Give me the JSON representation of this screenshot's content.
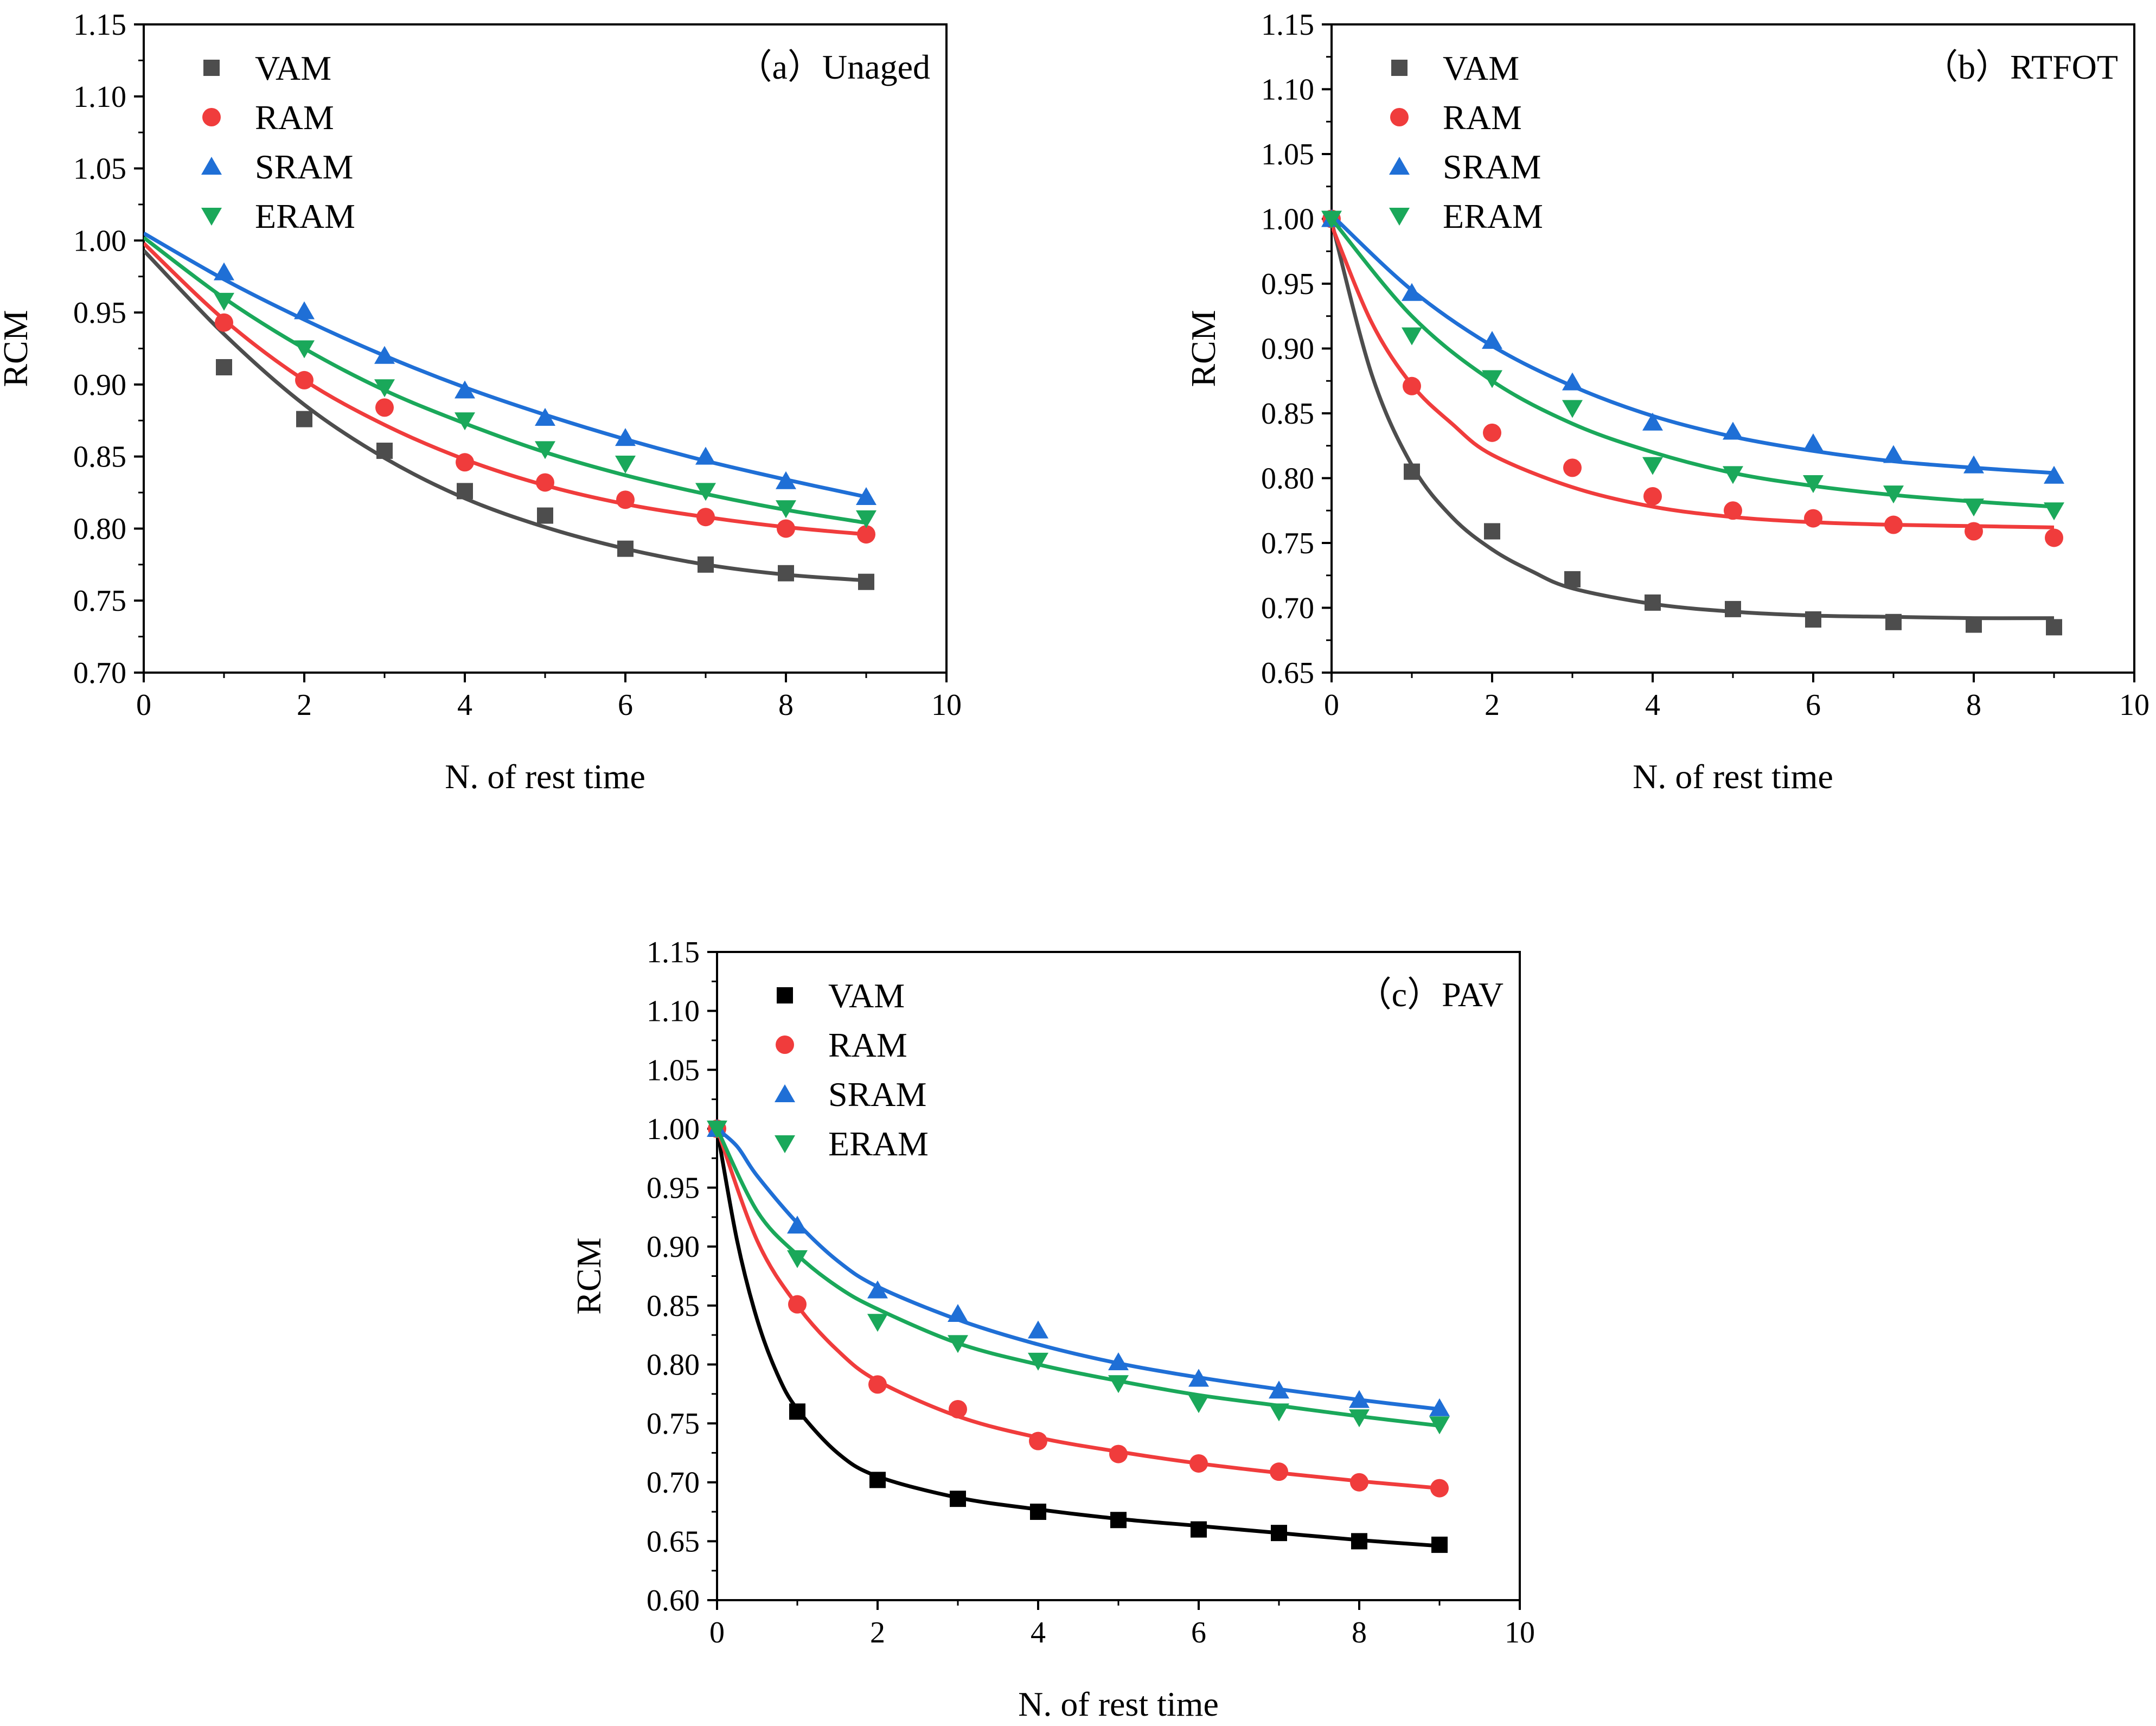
{
  "chart_data": [
    {
      "type": "scatter",
      "panel_label": "（a）Unaged",
      "xlabel": "N. of rest time",
      "ylabel": "RCM",
      "xlim": [
        0,
        10
      ],
      "ylim": [
        0.7,
        1.15
      ],
      "xticks": [
        "0",
        "2",
        "4",
        "6",
        "8",
        "10"
      ],
      "yticks": [
        "0.70",
        "0.75",
        "0.80",
        "0.85",
        "0.90",
        "0.95",
        "1.00",
        "1.05",
        "1.10",
        "1.15"
      ],
      "legend_position": "top-left",
      "series": [
        {
          "name": "VAM",
          "marker": "square",
          "color": "#4d4d4d",
          "x": [
            1,
            2,
            3,
            4,
            5,
            6,
            7,
            8,
            9
          ],
          "y": [
            0.912,
            0.876,
            0.854,
            0.826,
            0.809,
            0.786,
            0.775,
            0.769,
            0.763
          ],
          "fit": {
            "x": [
              0,
              1,
              2,
              3,
              4,
              5,
              6,
              7,
              8,
              9
            ],
            "y": [
              0.993,
              0.935,
              0.886,
              0.849,
              0.821,
              0.801,
              0.786,
              0.775,
              0.768,
              0.764
            ]
          }
        },
        {
          "name": "RAM",
          "marker": "circle",
          "color": "#f03c3c",
          "x": [
            1,
            2,
            3,
            4,
            5,
            6,
            7,
            8,
            9
          ],
          "y": [
            0.943,
            0.903,
            0.884,
            0.846,
            0.832,
            0.82,
            0.808,
            0.8,
            0.796
          ],
          "fit": {
            "x": [
              0,
              1,
              2,
              3,
              4,
              5,
              6,
              7,
              8,
              9
            ],
            "y": [
              0.998,
              0.945,
              0.903,
              0.872,
              0.848,
              0.83,
              0.817,
              0.808,
              0.801,
              0.796
            ]
          }
        },
        {
          "name": "SRAM",
          "marker": "triangle-up",
          "color": "#1f6fd6",
          "x": [
            1,
            2,
            3,
            4,
            5,
            6,
            7,
            8,
            9
          ],
          "y": [
            0.978,
            0.951,
            0.92,
            0.896,
            0.877,
            0.863,
            0.85,
            0.833,
            0.822
          ],
          "fit": {
            "x": [
              0,
              1,
              2,
              3,
              4,
              5,
              6,
              7,
              8,
              9
            ],
            "y": [
              1.005,
              0.973,
              0.945,
              0.92,
              0.898,
              0.879,
              0.862,
              0.847,
              0.834,
              0.822
            ]
          }
        },
        {
          "name": "ERAM",
          "marker": "triangle-down",
          "color": "#1aa85a",
          "x": [
            1,
            2,
            3,
            4,
            5,
            6,
            7,
            8,
            9
          ],
          "y": [
            0.958,
            0.925,
            0.898,
            0.875,
            0.855,
            0.845,
            0.826,
            0.814,
            0.807
          ],
          "fit": {
            "x": [
              0,
              1,
              2,
              3,
              4,
              5,
              6,
              7,
              8,
              9
            ],
            "y": [
              1.002,
              0.96,
              0.925,
              0.896,
              0.873,
              0.853,
              0.837,
              0.824,
              0.813,
              0.804
            ]
          }
        }
      ]
    },
    {
      "type": "scatter",
      "panel_label": "（b）RTFOT",
      "xlabel": "N. of rest time",
      "ylabel": "RCM",
      "xlim": [
        0,
        10
      ],
      "ylim": [
        0.65,
        1.15
      ],
      "xticks": [
        "0",
        "2",
        "4",
        "6",
        "8",
        "10"
      ],
      "yticks": [
        "0.65",
        "0.70",
        "0.75",
        "0.80",
        "0.85",
        "0.90",
        "0.95",
        "1.00",
        "1.05",
        "1.10",
        "1.15"
      ],
      "legend_position": "top-left",
      "series": [
        {
          "name": "VAM",
          "marker": "square",
          "color": "#4d4d4d",
          "x": [
            0,
            1,
            2,
            3,
            4,
            5,
            6,
            7,
            8,
            9
          ],
          "y": [
            1.0,
            0.805,
            0.759,
            0.722,
            0.704,
            0.699,
            0.691,
            0.689,
            0.687,
            0.685
          ],
          "fit": {
            "x": [
              0,
              0.5,
              1,
              1.5,
              2,
              2.5,
              3,
              4,
              5,
              6,
              7,
              8,
              9
            ],
            "y": [
              0.998,
              0.88,
              0.81,
              0.77,
              0.745,
              0.728,
              0.715,
              0.703,
              0.697,
              0.694,
              0.693,
              0.692,
              0.692
            ]
          }
        },
        {
          "name": "RAM",
          "marker": "circle",
          "color": "#f03c3c",
          "x": [
            0,
            1,
            2,
            3,
            4,
            5,
            6,
            7,
            8,
            9
          ],
          "y": [
            1.0,
            0.871,
            0.835,
            0.808,
            0.786,
            0.775,
            0.769,
            0.764,
            0.759,
            0.754
          ],
          "fit": {
            "x": [
              0,
              0.5,
              1,
              1.5,
              2,
              3,
              4,
              5,
              6,
              7,
              8,
              9
            ],
            "y": [
              0.995,
              0.92,
              0.872,
              0.842,
              0.818,
              0.793,
              0.778,
              0.77,
              0.766,
              0.764,
              0.763,
              0.762
            ]
          }
        },
        {
          "name": "SRAM",
          "marker": "triangle-up",
          "color": "#1f6fd6",
          "x": [
            0,
            1,
            2,
            3,
            4,
            5,
            6,
            7,
            8,
            9
          ],
          "y": [
            1.0,
            0.943,
            0.906,
            0.874,
            0.843,
            0.836,
            0.827,
            0.818,
            0.81,
            0.802
          ],
          "fit": {
            "x": [
              0,
              1,
              2,
              3,
              4,
              5,
              6,
              7,
              8,
              9
            ],
            "y": [
              1.003,
              0.945,
              0.902,
              0.871,
              0.848,
              0.832,
              0.821,
              0.813,
              0.808,
              0.804
            ]
          }
        },
        {
          "name": "ERAM",
          "marker": "triangle-down",
          "color": "#1aa85a",
          "x": [
            0,
            1,
            2,
            3,
            4,
            5,
            6,
            7,
            8,
            9
          ],
          "y": [
            1.0,
            0.91,
            0.877,
            0.854,
            0.81,
            0.803,
            0.796,
            0.788,
            0.778,
            0.775
          ],
          "fit": {
            "x": [
              0,
              1,
              2,
              3,
              4,
              5,
              6,
              7,
              8,
              9
            ],
            "y": [
              1.0,
              0.925,
              0.875,
              0.842,
              0.82,
              0.804,
              0.794,
              0.787,
              0.782,
              0.778
            ]
          }
        }
      ]
    },
    {
      "type": "scatter",
      "panel_label": "（c）PAV",
      "xlabel": "N. of rest time",
      "ylabel": "RCM",
      "xlim": [
        0,
        10
      ],
      "ylim": [
        0.6,
        1.15
      ],
      "xticks": [
        "0",
        "2",
        "4",
        "6",
        "8",
        "10"
      ],
      "yticks": [
        "0.60",
        "0.65",
        "0.70",
        "0.75",
        "0.80",
        "0.85",
        "0.90",
        "0.95",
        "1.00",
        "1.05",
        "1.10",
        "1.15"
      ],
      "legend_position": "top-left",
      "series": [
        {
          "name": "VAM",
          "marker": "square",
          "color": "#000000",
          "x": [
            0,
            1,
            2,
            3,
            4,
            5,
            6,
            7,
            8,
            9
          ],
          "y": [
            1.0,
            0.76,
            0.702,
            0.686,
            0.675,
            0.668,
            0.66,
            0.657,
            0.65,
            0.647
          ],
          "fit": {
            "x": [
              0,
              0.25,
              0.5,
              0.75,
              1,
              1.5,
              2,
              3,
              4,
              5,
              6,
              7,
              8,
              9
            ],
            "y": [
              1.0,
              0.905,
              0.838,
              0.792,
              0.762,
              0.725,
              0.705,
              0.687,
              0.677,
              0.669,
              0.663,
              0.657,
              0.651,
              0.646
            ]
          }
        },
        {
          "name": "RAM",
          "marker": "circle",
          "color": "#f03c3c",
          "x": [
            0,
            1,
            2,
            3,
            4,
            5,
            6,
            7,
            8,
            9
          ],
          "y": [
            1.0,
            0.851,
            0.783,
            0.762,
            0.735,
            0.724,
            0.716,
            0.709,
            0.7,
            0.695
          ],
          "fit": {
            "x": [
              0,
              0.5,
              1,
              1.5,
              2,
              3,
              4,
              5,
              6,
              7,
              8,
              9
            ],
            "y": [
              1.0,
              0.905,
              0.85,
              0.812,
              0.786,
              0.756,
              0.738,
              0.726,
              0.716,
              0.708,
              0.701,
              0.695
            ]
          }
        },
        {
          "name": "SRAM",
          "marker": "triangle-up",
          "color": "#1f6fd6",
          "x": [
            0,
            1,
            2,
            3,
            4,
            5,
            6,
            7,
            8,
            9
          ],
          "y": [
            1.0,
            0.918,
            0.863,
            0.843,
            0.829,
            0.802,
            0.788,
            0.778,
            0.77,
            0.763
          ],
          "fit": {
            "x": [
              0,
              0.25,
              0.5,
              1,
              1.5,
              2,
              3,
              4,
              5,
              6,
              7,
              8,
              9
            ],
            "y": [
              1.0,
              0.985,
              0.96,
              0.92,
              0.888,
              0.866,
              0.838,
              0.817,
              0.801,
              0.789,
              0.779,
              0.77,
              0.762
            ]
          }
        },
        {
          "name": "ERAM",
          "marker": "triangle-down",
          "color": "#1aa85a",
          "x": [
            0,
            1,
            2,
            3,
            4,
            5,
            6,
            7,
            8,
            9
          ],
          "y": [
            1.0,
            0.89,
            0.836,
            0.818,
            0.803,
            0.784,
            0.767,
            0.76,
            0.755,
            0.749
          ],
          "fit": {
            "x": [
              0,
              0.5,
              1,
              1.5,
              2,
              3,
              4,
              5,
              6,
              7,
              8,
              9
            ],
            "y": [
              1.0,
              0.93,
              0.893,
              0.866,
              0.847,
              0.818,
              0.8,
              0.786,
              0.774,
              0.765,
              0.756,
              0.748
            ]
          }
        }
      ]
    }
  ]
}
